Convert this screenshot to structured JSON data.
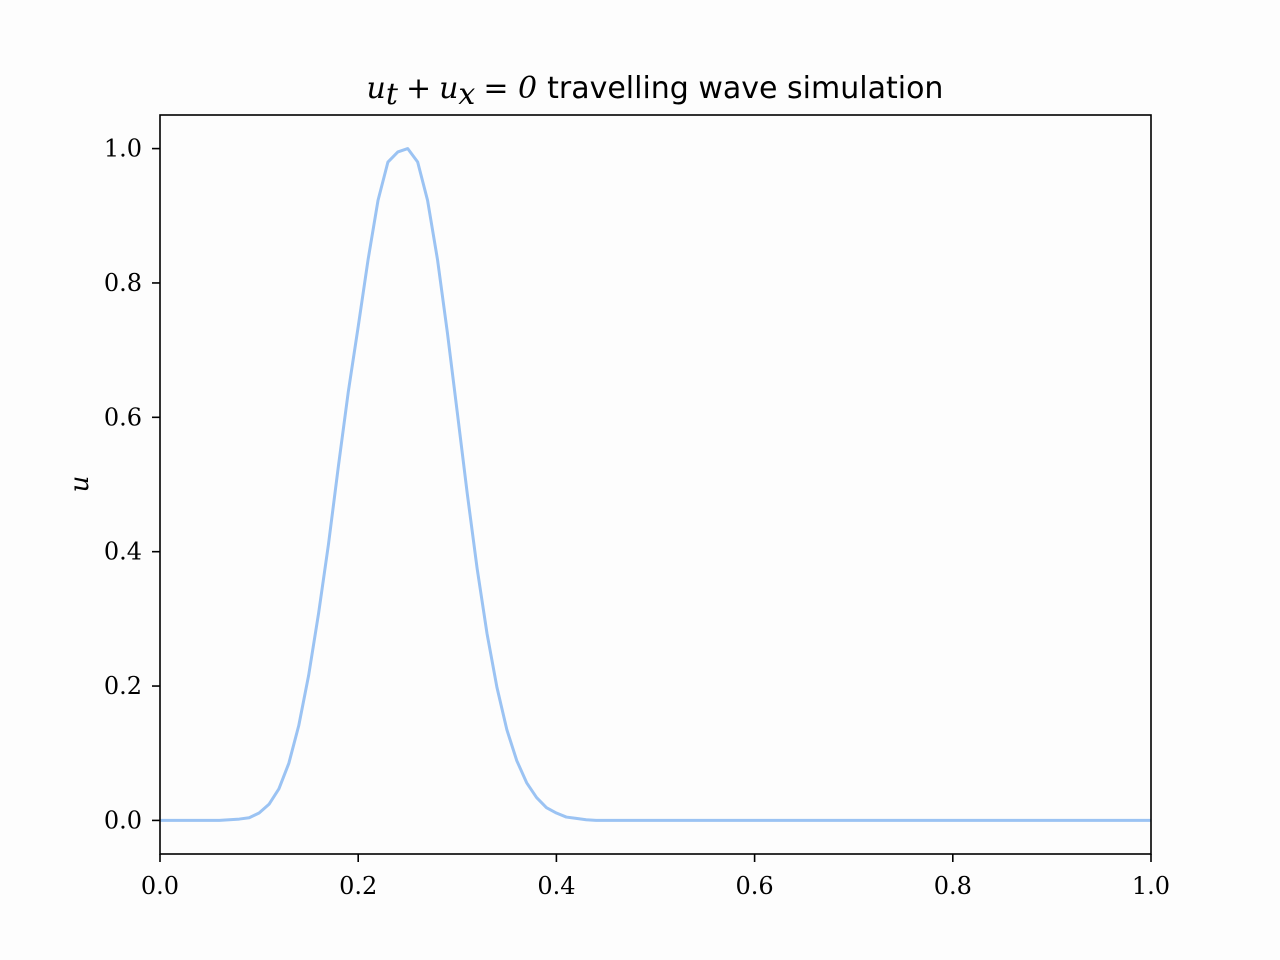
{
  "chart_data": {
    "type": "line",
    "title_math": "u_t + u_x = 0",
    "title_math_display": {
      "u1": "u",
      "sub1": "t",
      "plus": "+",
      "u2": "u",
      "sub2": "x",
      "eq": "= 0"
    },
    "title_text": "travelling wave simulation",
    "xlabel": "",
    "ylabel": "u",
    "xlim": [
      0.0,
      1.0
    ],
    "ylim": [
      -0.05,
      1.05
    ],
    "xticks": [
      0.0,
      0.2,
      0.4,
      0.6,
      0.8,
      1.0
    ],
    "xtick_labels": [
      "0.0",
      "0.2",
      "0.4",
      "0.6",
      "0.8",
      "1.0"
    ],
    "yticks": [
      0.0,
      0.2,
      0.4,
      0.6,
      0.8,
      1.0
    ],
    "ytick_labels": [
      "0.0",
      "0.2",
      "0.4",
      "0.6",
      "0.8",
      "1.0"
    ],
    "grid": false,
    "legend": "none",
    "line_color": "#9bc3f3",
    "series": [
      {
        "center": 0.25,
        "width": 0.05,
        "x_step": 0.01,
        "x": [
          0.0,
          0.01,
          0.02,
          0.03,
          0.04,
          0.05,
          0.06,
          0.07,
          0.08,
          0.09,
          0.1,
          0.11,
          0.12,
          0.13,
          0.14,
          0.15,
          0.16,
          0.17,
          0.18,
          0.19,
          0.2,
          0.21,
          0.22,
          0.23,
          0.24,
          0.25,
          0.26,
          0.27,
          0.28,
          0.29,
          0.3,
          0.31,
          0.32,
          0.33,
          0.34,
          0.35,
          0.36,
          0.37,
          0.38,
          0.39,
          0.4,
          0.41,
          0.42,
          0.43,
          0.44,
          0.45,
          0.46,
          0.47,
          0.48,
          0.49,
          0.5,
          1.0
        ],
        "y": [
          0.0,
          0.0,
          0.0,
          0.0,
          0.0,
          0.0,
          0.0,
          0.001,
          0.002,
          0.004,
          0.011,
          0.024,
          0.047,
          0.085,
          0.141,
          0.216,
          0.308,
          0.411,
          0.527,
          0.638,
          0.735,
          0.835,
          0.923,
          0.98,
          0.995,
          1.0,
          0.98,
          0.923,
          0.835,
          0.726,
          0.607,
          0.487,
          0.375,
          0.278,
          0.198,
          0.135,
          0.089,
          0.056,
          0.034,
          0.019,
          0.011,
          0.005,
          0.003,
          0.001,
          0.0,
          0.0,
          0.0,
          0.0,
          0.0,
          0.0,
          0.0,
          0.0
        ]
      }
    ]
  }
}
